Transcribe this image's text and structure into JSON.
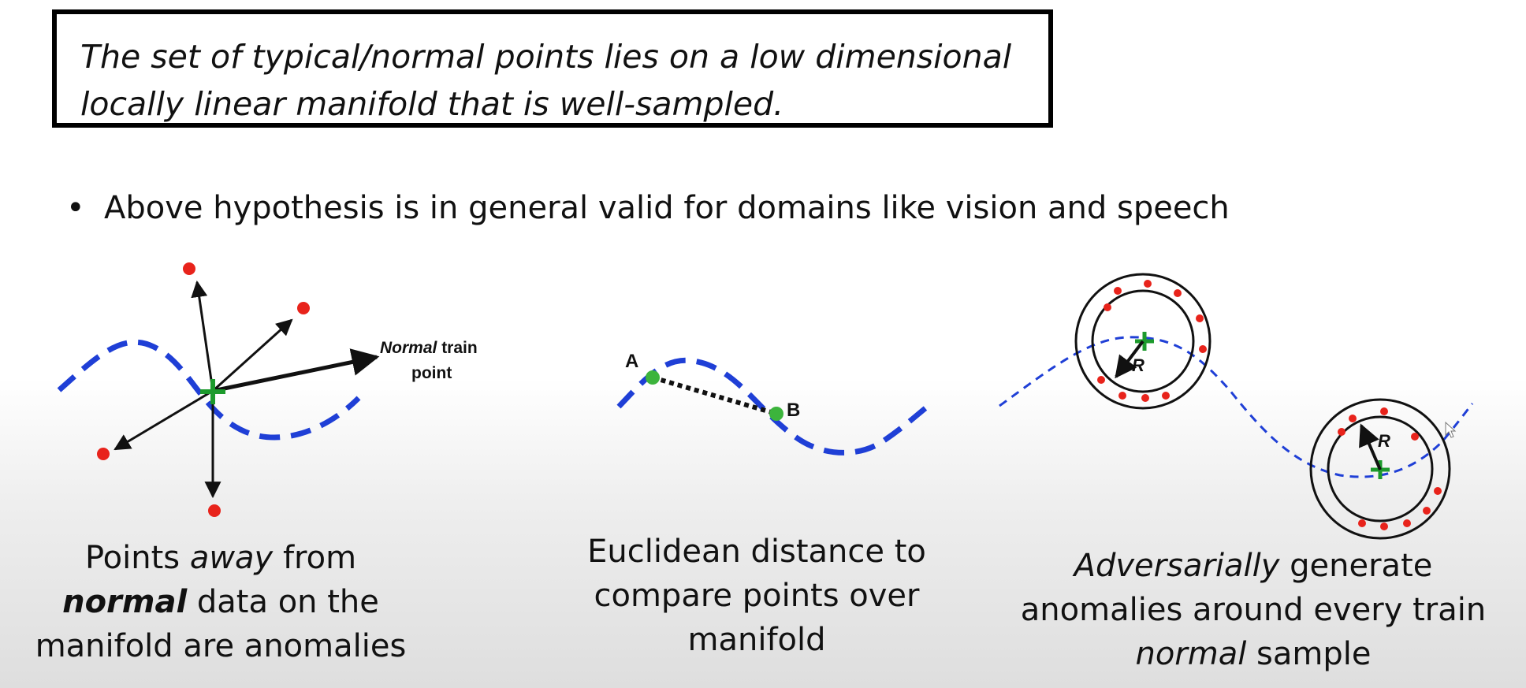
{
  "hypothesis": {
    "line1": "The set of typical/normal points lies on a low dimensional",
    "line2": "locally linear manifold that is well-sampled."
  },
  "bullet": {
    "symbol": "•",
    "text": "Above hypothesis is in general valid for domains like vision and speech"
  },
  "panel1": {
    "label_normal_italic": "Normal",
    "label_train": " train",
    "label_point": "point",
    "caption": {
      "l1_a": "Points ",
      "l1_b": "away",
      "l1_c": " from",
      "l2_a": "normal",
      "l2_b": " data on the",
      "l3": "manifold are anomalies"
    }
  },
  "panel2": {
    "label_a": "A",
    "label_b": "B",
    "caption": {
      "l1": "Euclidean distance to",
      "l2": "compare points over",
      "l3": "manifold"
    }
  },
  "panel3": {
    "radius_label_1": "R",
    "radius_label_2": "R",
    "caption": {
      "l1_a": "Adversarially",
      "l1_b": " generate",
      "l2": "anomalies around every train",
      "l3_a": "normal",
      "l3_b": " sample"
    }
  },
  "colors": {
    "manifold": "#1f3fd6",
    "anomaly": "#e8231b",
    "normal_point": "#1c9a2c",
    "arrow": "#111111"
  }
}
